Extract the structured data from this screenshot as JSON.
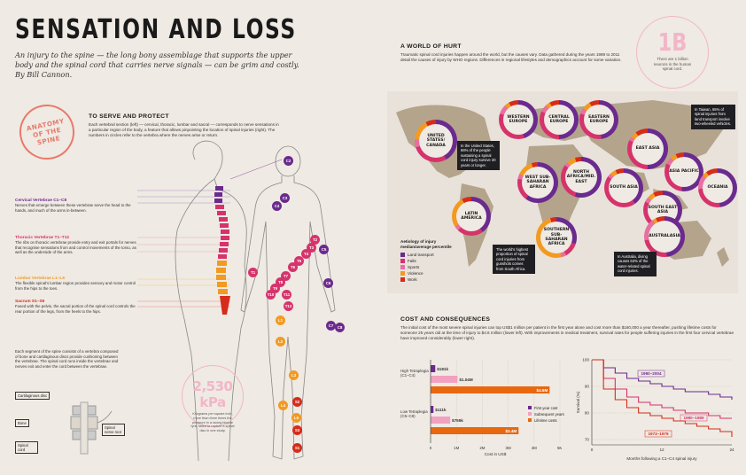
{
  "title": "SENSATION AND LOSS",
  "deck": "An injury to the spine — the long bony assemblage that supports the upper body and the spinal cord that carries nerve signals — can be grim and costly. By Bill Cannon.",
  "anatomy": {
    "stamp": "ANATOMY OF THE SPINE",
    "heading": "TO SERVE AND PROTECT",
    "intro": "Each vertebral section (left) — cervical, thoracic, lumbar and sacral — corresponds to nerve sensations in a particular region of the body, a feature that allows pinpointing the location of spinal injuries (right). The numbers in circles refer to the vertebra where the nerves arise or return.",
    "sections": [
      {
        "head": "Cervical Vertebrae C1–C8",
        "text": "Nerves that emerge between these vertebrae serve the head to the hands, and much of the arms in-between.",
        "color": "#6b2a8e"
      },
      {
        "head": "Thoracic Vertebrae T1–T12",
        "text": "The ribs on thoracic vertebrae provide entry and exit portals for nerves that recognise sensations from and control movements of the torso, as well as the underside of the arms.",
        "color": "#d6336c"
      },
      {
        "head": "Lumbar Vertebrae L1–L5",
        "text": "The flexible spinal's lumbar region provides sensory and motor control from the hips to the toes.",
        "color": "#f29a21"
      },
      {
        "head": "Sacrum S1–S5",
        "text": "Fused with the pelvis, the sacral portion of the spinal cord controls the rear portion of the legs, from the heels to the hips.",
        "color": "#d62c1a"
      }
    ],
    "disc_text": "Each segment of the spine consists of a vertebra composed of bone and cartilaginous discs provide cushioning between the vertebrae. The spinal cord runs inside the vertebrae and nerves exit and enter the cord between the vertebrae.",
    "parts": [
      "Cartilaginous disc",
      "Bone",
      "Spinal nerve root",
      "Spinal cord"
    ],
    "kpa": {
      "value": "2,530 kPa",
      "text": "Kilograms per square inch, more than three times the pressure in a racing bicycle tyre, failed to rupture a spinal disc in one study."
    },
    "markers": [
      "C2",
      "C3",
      "C4",
      "C5",
      "C6",
      "C7",
      "C8",
      "T1",
      "T2",
      "T3",
      "T4",
      "T5",
      "T6",
      "T7",
      "T8",
      "T9",
      "T10",
      "T11",
      "T12",
      "L1",
      "L2",
      "L3",
      "L4",
      "L5",
      "S1",
      "S2",
      "S3"
    ]
  },
  "world": {
    "heading": "A WORLD OF HURT",
    "intro": "Traumatic spinal cord injuries happen around the world, but the causes vary. Data gathered during the years 1989 to 2011 detail the causes of injury by WHO regions. Differences in regional lifestyles and demographics account for some variation.",
    "bigstat": {
      "value": "1B",
      "caption": "There are 1 billion neurons in the human spinal cord."
    },
    "regions": [
      "UNITED STATES/ CANADA",
      "WESTERN EUROPE",
      "CENTRAL EUROPE",
      "EASTERN EUROPE",
      "WEST SUB-SAHARAN AFRICA",
      "NORTH AFRICA/MID. EAST",
      "EAST ASIA",
      "ASIA PACIFIC",
      "SOUTH ASIA",
      "SOUTH EAST ASIA",
      "OCEANIA",
      "LATIN AMERICA",
      "SOUTHERN SUB-SAHARAN AFRICA",
      "AUSTRALASIA"
    ],
    "callouts": {
      "us": "In the United States, 66% of the people sustaining a spinal cord injury survive 30 years or longer.",
      "africa": "The world's highest proportion of spinal cord injuries from gunshots comes from South Africa.",
      "taiwan": "In Taiwan, 65% of spinal injuries from land transport involve two-wheeled vehicles.",
      "australia": "In Australia, diving causes 63% of the water-related spinal cord injuries."
    },
    "legend": {
      "title": "Aetiology of injury median/average percentile",
      "items": [
        {
          "label": "Land transport",
          "color": "#6b2a8e"
        },
        {
          "label": "Falls",
          "color": "#d6336c"
        },
        {
          "label": "Sports",
          "color": "#e86fa0"
        },
        {
          "label": "Violence",
          "color": "#f29a21"
        },
        {
          "label": "Work",
          "color": "#d62c1a"
        }
      ]
    }
  },
  "costs": {
    "heading": "COST AND CONSEQUENCES",
    "intro": "The initial cost of the most severe spinal injuries can top US$1 million per patient in the first year alone and cost more than $180,000 a year thereafter, pushing lifetime costs for someone 25 years old at the time of injury to $4.6 million (lower left). With improvements in medical treatment, survival rates for people suffering injuries in the first four cervical vertebrae have improved considerably (lower right).",
    "bars": {
      "xlabel": "Cost in US$",
      "ticks": [
        "0",
        "1M",
        "2M",
        "3M",
        "4M",
        "5M"
      ],
      "legend": [
        "First year cost",
        "Subsequent years",
        "Lifetime costs"
      ],
      "groups": [
        {
          "label": "High Tetraplegia (C1–C4)",
          "first": 0.18,
          "subsequent": 1.04,
          "lifetime": 4.6,
          "labels": [
            "$181k",
            "$1.04M",
            "$4.6M"
          ]
        },
        {
          "label": "Low Tetraplegia (C5–C8)",
          "first": 0.111,
          "subsequent": 0.755,
          "lifetime": 3.4,
          "labels": [
            "$111k",
            "$755k",
            "$3.4M"
          ]
        }
      ]
    },
    "survival": {
      "ylabel": "Survival (%)",
      "xlabel": "Months following a C1–C4 spinal injury",
      "yticks": [
        "100",
        "90",
        "80",
        "70"
      ],
      "xticks": [
        "0",
        "12",
        "24"
      ],
      "series": [
        "1990–2004",
        "1980–1989",
        "1973–1979"
      ]
    }
  },
  "chart_data": [
    {
      "type": "bar",
      "categories": [
        "High Tetraplegia (C1–C4)",
        "Low Tetraplegia (C5–C8)"
      ],
      "series": [
        {
          "name": "First year cost",
          "values": [
            0.181,
            0.111
          ]
        },
        {
          "name": "Subsequent years",
          "values": [
            1.04,
            0.755
          ]
        },
        {
          "name": "Lifetime costs",
          "values": [
            4.6,
            3.4
          ]
        }
      ],
      "xlabel": "Cost in US$",
      "ylim": [
        0,
        5
      ]
    },
    {
      "type": "line",
      "x": [
        0,
        2,
        4,
        6,
        8,
        10,
        12,
        14,
        16,
        18,
        20,
        22,
        24
      ],
      "series": [
        {
          "name": "1990–2004",
          "values": [
            100,
            97,
            95,
            93,
            92,
            91,
            90,
            89,
            88,
            88,
            87,
            86,
            85
          ]
        },
        {
          "name": "1980–1989",
          "values": [
            100,
            93,
            89,
            86,
            84,
            83,
            82,
            81,
            80,
            80,
            79,
            78,
            78
          ]
        },
        {
          "name": "1973–1979",
          "values": [
            100,
            89,
            85,
            82,
            80,
            79,
            78,
            77,
            76,
            75,
            74,
            73,
            71
          ]
        }
      ],
      "xlabel": "Months following a C1–C4 spinal injury",
      "ylabel": "Survival (%)",
      "ylim": [
        68,
        100
      ]
    }
  ]
}
